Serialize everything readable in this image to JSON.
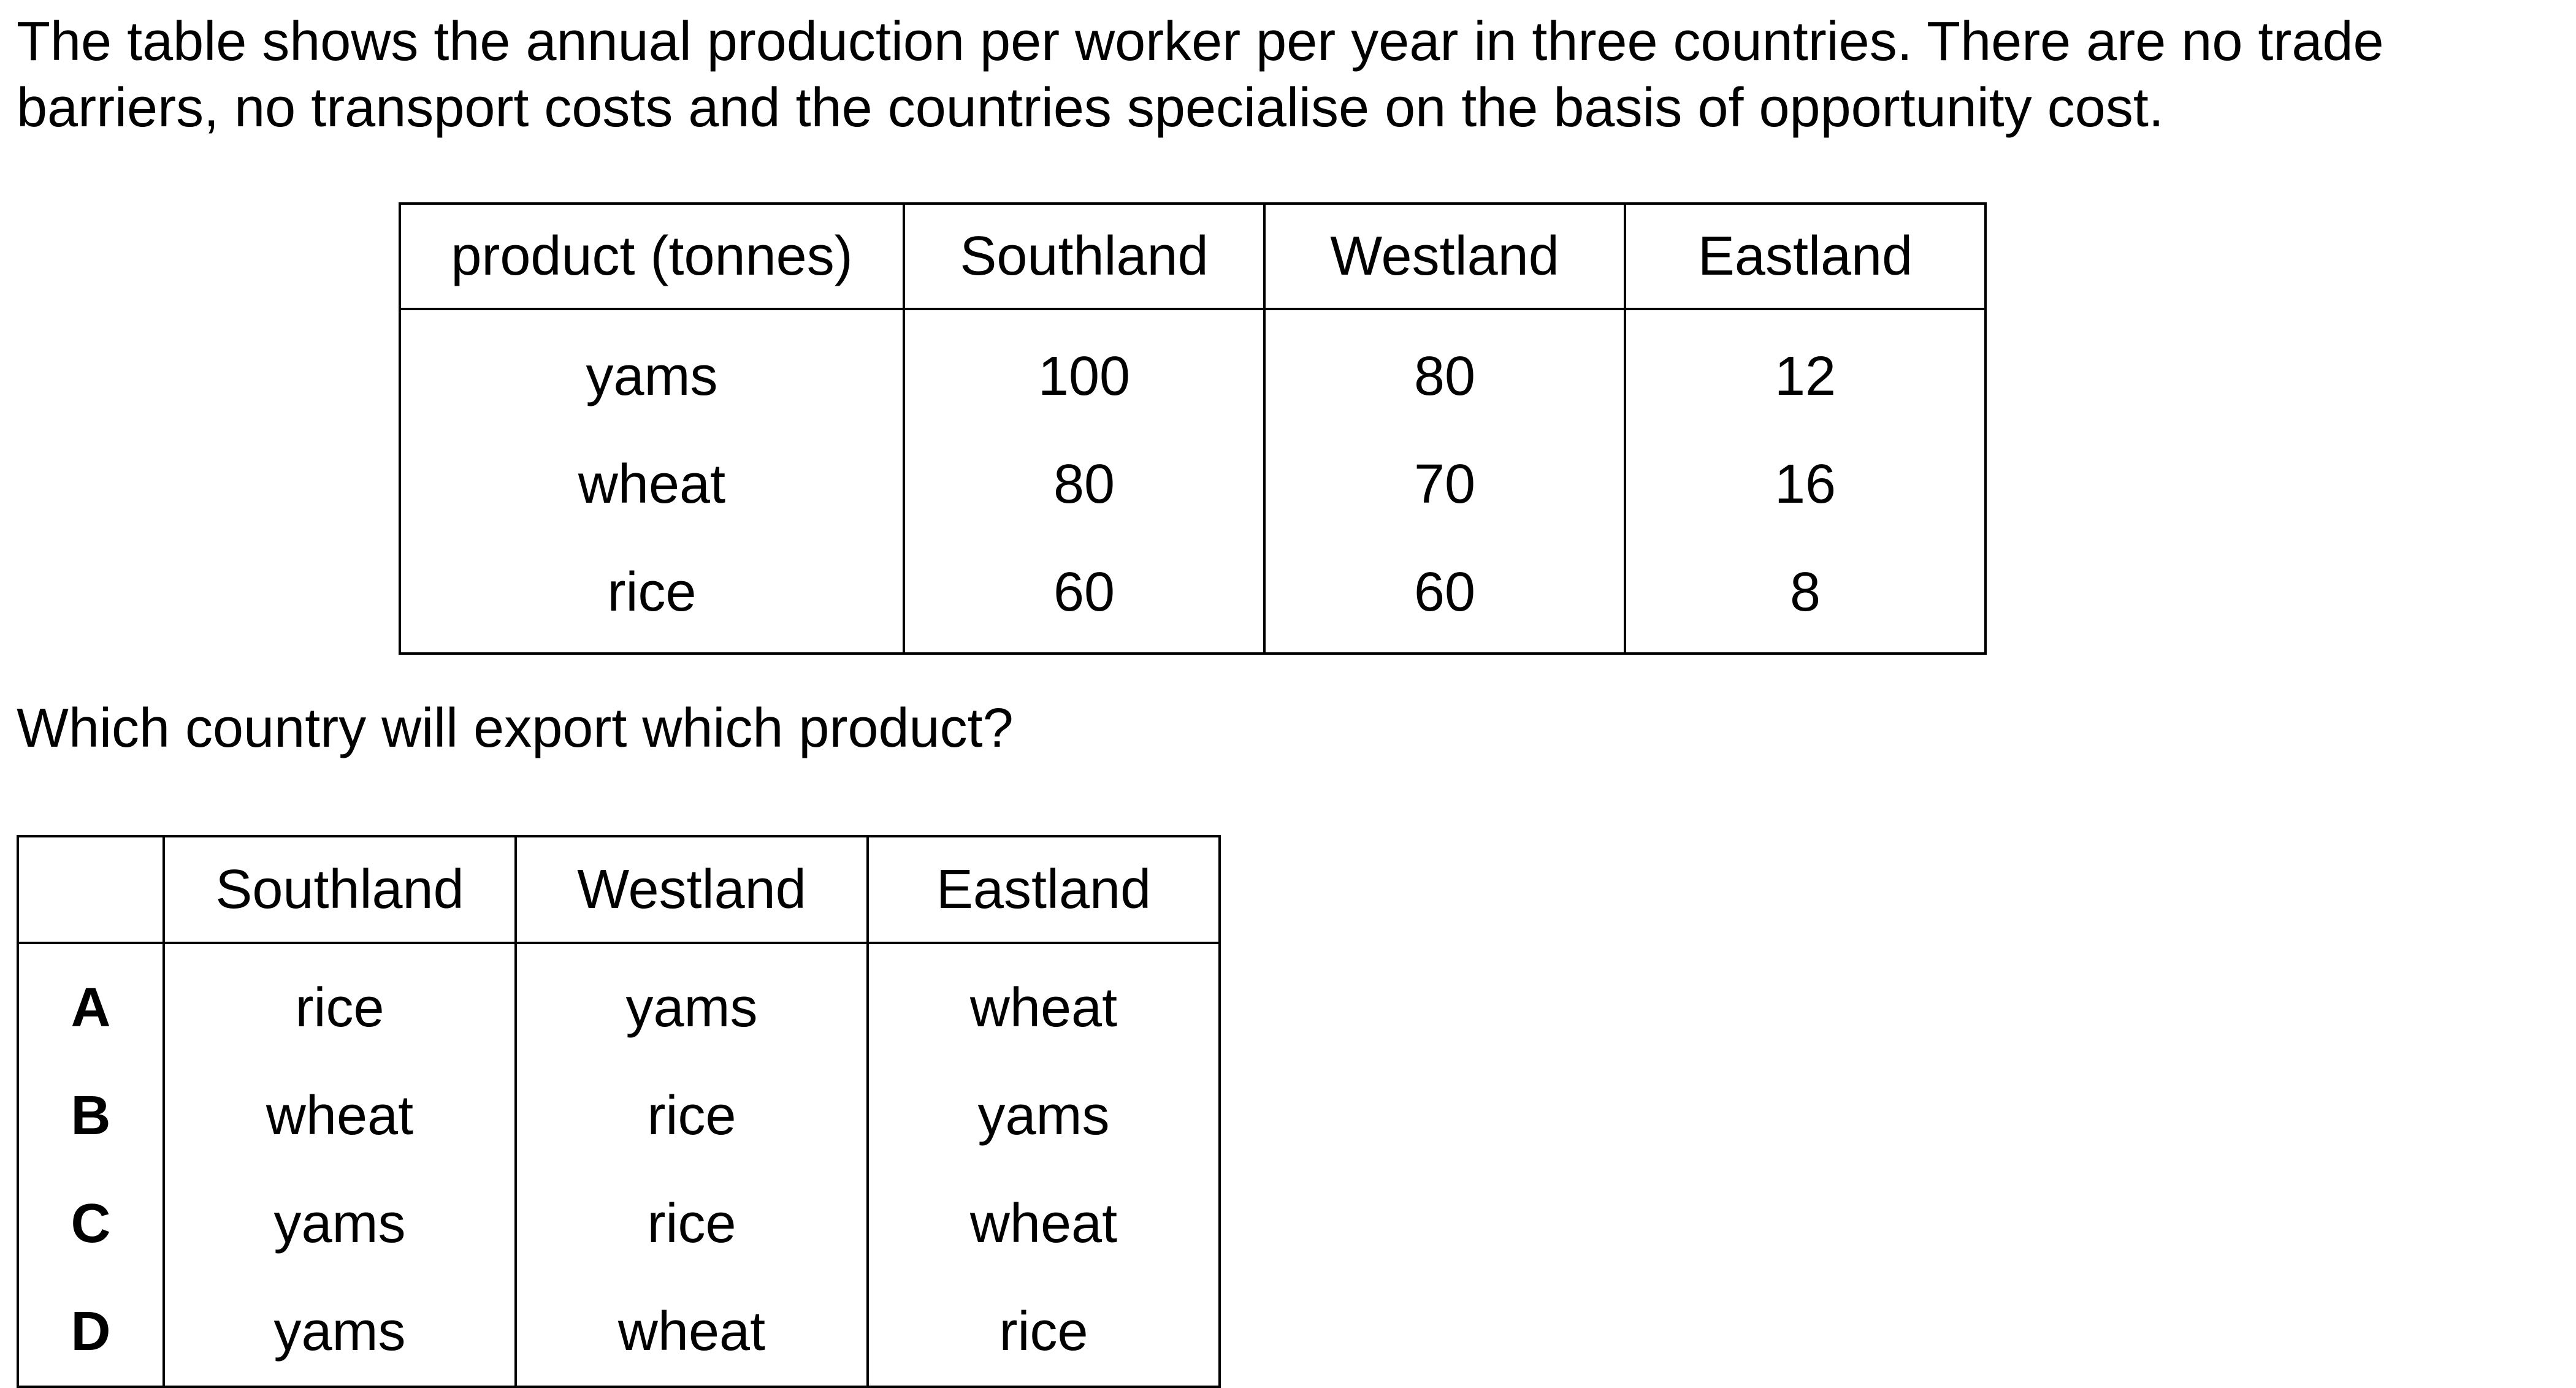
{
  "intro": {
    "line1": "The table shows the annual production per worker per year in three countries. There are no trade",
    "line2": "barriers, no transport costs and the countries specialise on the basis of opportunity cost."
  },
  "production_table": {
    "headers": [
      "product (tonnes)",
      "Southland",
      "Westland",
      "Eastland"
    ],
    "rows": [
      [
        "yams",
        "100",
        "80",
        "12"
      ],
      [
        "wheat",
        "80",
        "70",
        "16"
      ],
      [
        "rice",
        "60",
        "60",
        "8"
      ]
    ]
  },
  "question": "Which country will export which product?",
  "options_table": {
    "headers": [
      "",
      "Southland",
      "Westland",
      "Eastland"
    ],
    "rows": [
      [
        "A",
        "rice",
        "yams",
        "wheat"
      ],
      [
        "B",
        "wheat",
        "rice",
        "yams"
      ],
      [
        "C",
        "yams",
        "rice",
        "wheat"
      ],
      [
        "D",
        "yams",
        "wheat",
        "rice"
      ]
    ]
  }
}
